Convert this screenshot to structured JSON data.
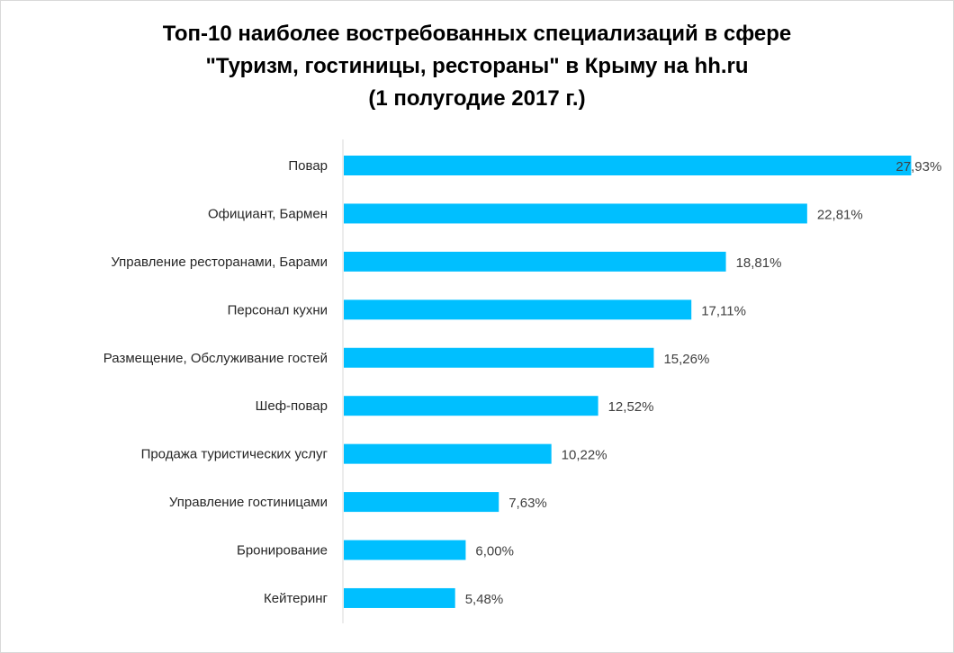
{
  "chart_data": {
    "type": "bar",
    "orientation": "horizontal",
    "title_lines": [
      "Топ-10 наиболее востребованных специализаций в сфере",
      "\"Туризм, гостиницы, рестораны\" в Крыму на hh.ru",
      "(1 полугодие 2017 г.)"
    ],
    "categories": [
      "Повар",
      "Официант, Бармен",
      "Управление ресторанами, Барами",
      "Персонал кухни",
      "Размещение, Обслуживание гостей",
      "Шеф-повар",
      "Продажа туристических услуг",
      "Управление гостиницами",
      "Бронирование",
      "Кейтеринг"
    ],
    "values": [
      27.93,
      22.81,
      18.81,
      17.11,
      15.26,
      12.52,
      10.22,
      7.63,
      6.0,
      5.48
    ],
    "value_labels": [
      "27,93%",
      "22,81%",
      "18,81%",
      "17,11%",
      "15,26%",
      "12,52%",
      "10,22%",
      "7,63%",
      "6,00%",
      "5,48%"
    ],
    "xlim": [
      0,
      28
    ],
    "bar_color": "#00bfff",
    "axis_color": "#d9d9d9",
    "grid": false,
    "legend": "none"
  }
}
